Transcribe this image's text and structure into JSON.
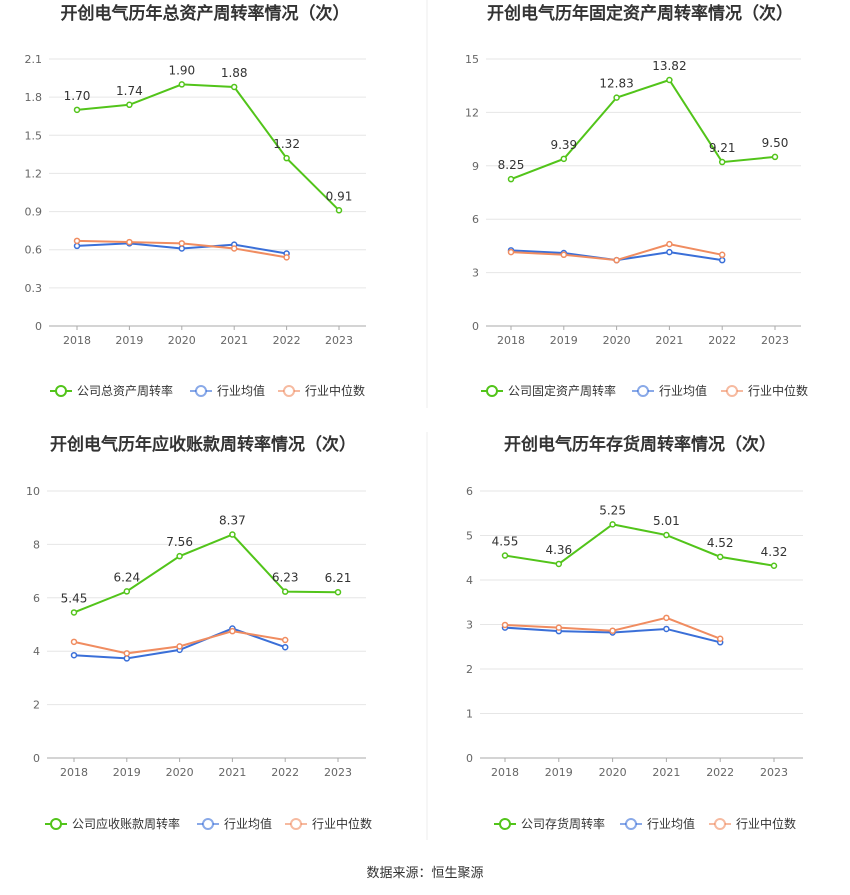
{
  "source_text": "数据来源：恒生聚源",
  "chart_data": [
    {
      "type": "line",
      "title": "开创电气历年总资产周转率情况（次）",
      "categories": [
        "2018",
        "2019",
        "2020",
        "2021",
        "2022",
        "2023"
      ],
      "yticks": [
        "0",
        "0.3",
        "0.6",
        "0.9",
        "1.2",
        "1.5",
        "1.8",
        "2.1"
      ],
      "ylim": [
        0,
        2.1
      ],
      "series": [
        {
          "name": "公司总资产周转率",
          "color": "#52c41a",
          "values": [
            1.7,
            1.74,
            1.9,
            1.88,
            1.32,
            0.91
          ],
          "labels": [
            "1.70",
            "1.74",
            "1.90",
            "1.88",
            "1.32",
            "0.91"
          ]
        },
        {
          "name": "行业均值",
          "color": "#3a6fd8",
          "values": [
            0.63,
            0.65,
            0.61,
            0.64,
            0.57,
            null
          ],
          "labels": []
        },
        {
          "name": "行业中位数",
          "color": "#f08c60",
          "values": [
            0.67,
            0.66,
            0.65,
            0.61,
            0.54,
            null
          ],
          "labels": []
        }
      ]
    },
    {
      "type": "line",
      "title": "开创电气历年固定资产周转率情况（次）",
      "categories": [
        "2018",
        "2019",
        "2020",
        "2021",
        "2022",
        "2023"
      ],
      "yticks": [
        "0",
        "3",
        "6",
        "9",
        "12",
        "15"
      ],
      "ylim": [
        0,
        15
      ],
      "series": [
        {
          "name": "公司固定资产周转率",
          "color": "#52c41a",
          "values": [
            8.25,
            9.39,
            12.83,
            13.82,
            9.21,
            9.5
          ],
          "labels": [
            "8.25",
            "9.39",
            "12.83",
            "13.82",
            "9.21",
            "9.50"
          ]
        },
        {
          "name": "行业均值",
          "color": "#3a6fd8",
          "values": [
            4.25,
            4.1,
            3.7,
            4.15,
            3.7,
            null
          ],
          "labels": []
        },
        {
          "name": "行业中位数",
          "color": "#f08c60",
          "values": [
            4.15,
            4.0,
            3.7,
            4.6,
            4.0,
            null
          ],
          "labels": []
        }
      ]
    },
    {
      "type": "line",
      "title": "开创电气历年应收账款周转率情况（次）",
      "categories": [
        "2018",
        "2019",
        "2020",
        "2021",
        "2022",
        "2023"
      ],
      "yticks": [
        "0",
        "2",
        "4",
        "6",
        "8",
        "10"
      ],
      "ylim": [
        0,
        10
      ],
      "series": [
        {
          "name": "公司应收账款周转率",
          "color": "#52c41a",
          "values": [
            5.45,
            6.24,
            7.56,
            8.37,
            6.23,
            6.21
          ],
          "labels": [
            "5.45",
            "6.24",
            "7.56",
            "8.37",
            "6.23",
            "6.21"
          ]
        },
        {
          "name": "行业均值",
          "color": "#3a6fd8",
          "values": [
            3.85,
            3.73,
            4.05,
            4.85,
            4.15,
            null
          ],
          "labels": []
        },
        {
          "name": "行业中位数",
          "color": "#f08c60",
          "values": [
            4.35,
            3.92,
            4.18,
            4.75,
            4.42,
            null
          ],
          "labels": []
        }
      ]
    },
    {
      "type": "line",
      "title": "开创电气历年存货周转率情况（次）",
      "categories": [
        "2018",
        "2019",
        "2020",
        "2021",
        "2022",
        "2023"
      ],
      "yticks": [
        "0",
        "1",
        "2",
        "3",
        "4",
        "5",
        "6"
      ],
      "ylim": [
        0,
        6
      ],
      "series": [
        {
          "name": "公司存货周转率",
          "color": "#52c41a",
          "values": [
            4.55,
            4.36,
            5.25,
            5.01,
            4.52,
            4.32
          ],
          "labels": [
            "4.55",
            "4.36",
            "5.25",
            "5.01",
            "4.52",
            "4.32"
          ]
        },
        {
          "name": "行业均值",
          "color": "#3a6fd8",
          "values": [
            2.93,
            2.85,
            2.82,
            2.9,
            2.6,
            null
          ],
          "labels": []
        },
        {
          "name": "行业中位数",
          "color": "#f08c60",
          "values": [
            2.99,
            2.93,
            2.86,
            3.15,
            2.68,
            null
          ],
          "labels": []
        }
      ]
    }
  ]
}
